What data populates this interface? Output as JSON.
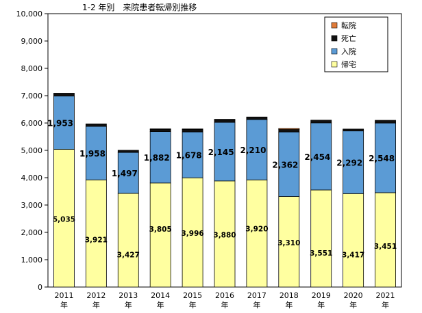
{
  "chart_data": {
    "type": "bar",
    "stacked": true,
    "title": "1-2 年別　来院患者転帰別推移",
    "categories": [
      "2011\n年",
      "2012\n年",
      "2013\n年",
      "2014\n年",
      "2015\n年",
      "2016\n年",
      "2017\n年",
      "2018\n年",
      "2019\n年",
      "2020\n年",
      "2021\n年"
    ],
    "ylim": [
      0,
      10000
    ],
    "yticks": [
      "0",
      "1,000",
      "2,000",
      "3,000",
      "4,000",
      "5,000",
      "6,000",
      "7,000",
      "8,000",
      "9,000",
      "10,000"
    ],
    "ytick_values": [
      0,
      1000,
      2000,
      3000,
      4000,
      5000,
      6000,
      7000,
      8000,
      9000,
      10000
    ],
    "grid": false,
    "legend_position": "top-right",
    "series": [
      {
        "name": "帰宅",
        "color": "#FFFFA0",
        "values": [
          5035,
          3921,
          3427,
          3805,
          3996,
          3880,
          3920,
          3310,
          3551,
          3417,
          3451
        ],
        "labels": [
          "5,035",
          "3,921",
          "3,427",
          "3,805",
          "3,996",
          "3,880",
          "3,920",
          "3,310",
          "3,551",
          "3,417",
          "3,451"
        ]
      },
      {
        "name": "入院",
        "color": "#5B9BD5",
        "values": [
          1953,
          1958,
          1497,
          1882,
          1678,
          2145,
          2210,
          2362,
          2454,
          2292,
          2548
        ],
        "labels": [
          "1,953",
          "1,958",
          "1,497",
          "1,882",
          "1,678",
          "2,145",
          "2,210",
          "2,362",
          "2,454",
          "2,292",
          "2,548"
        ]
      },
      {
        "name": "死亡",
        "color": "#111111",
        "values": [
          100,
          90,
          80,
          80,
          90,
          90,
          90,
          90,
          100,
          70,
          100
        ]
      },
      {
        "name": "転院",
        "color": "#E07B39",
        "values": [
          0,
          0,
          0,
          20,
          20,
          20,
          0,
          40,
          0,
          0,
          0
        ]
      }
    ]
  }
}
